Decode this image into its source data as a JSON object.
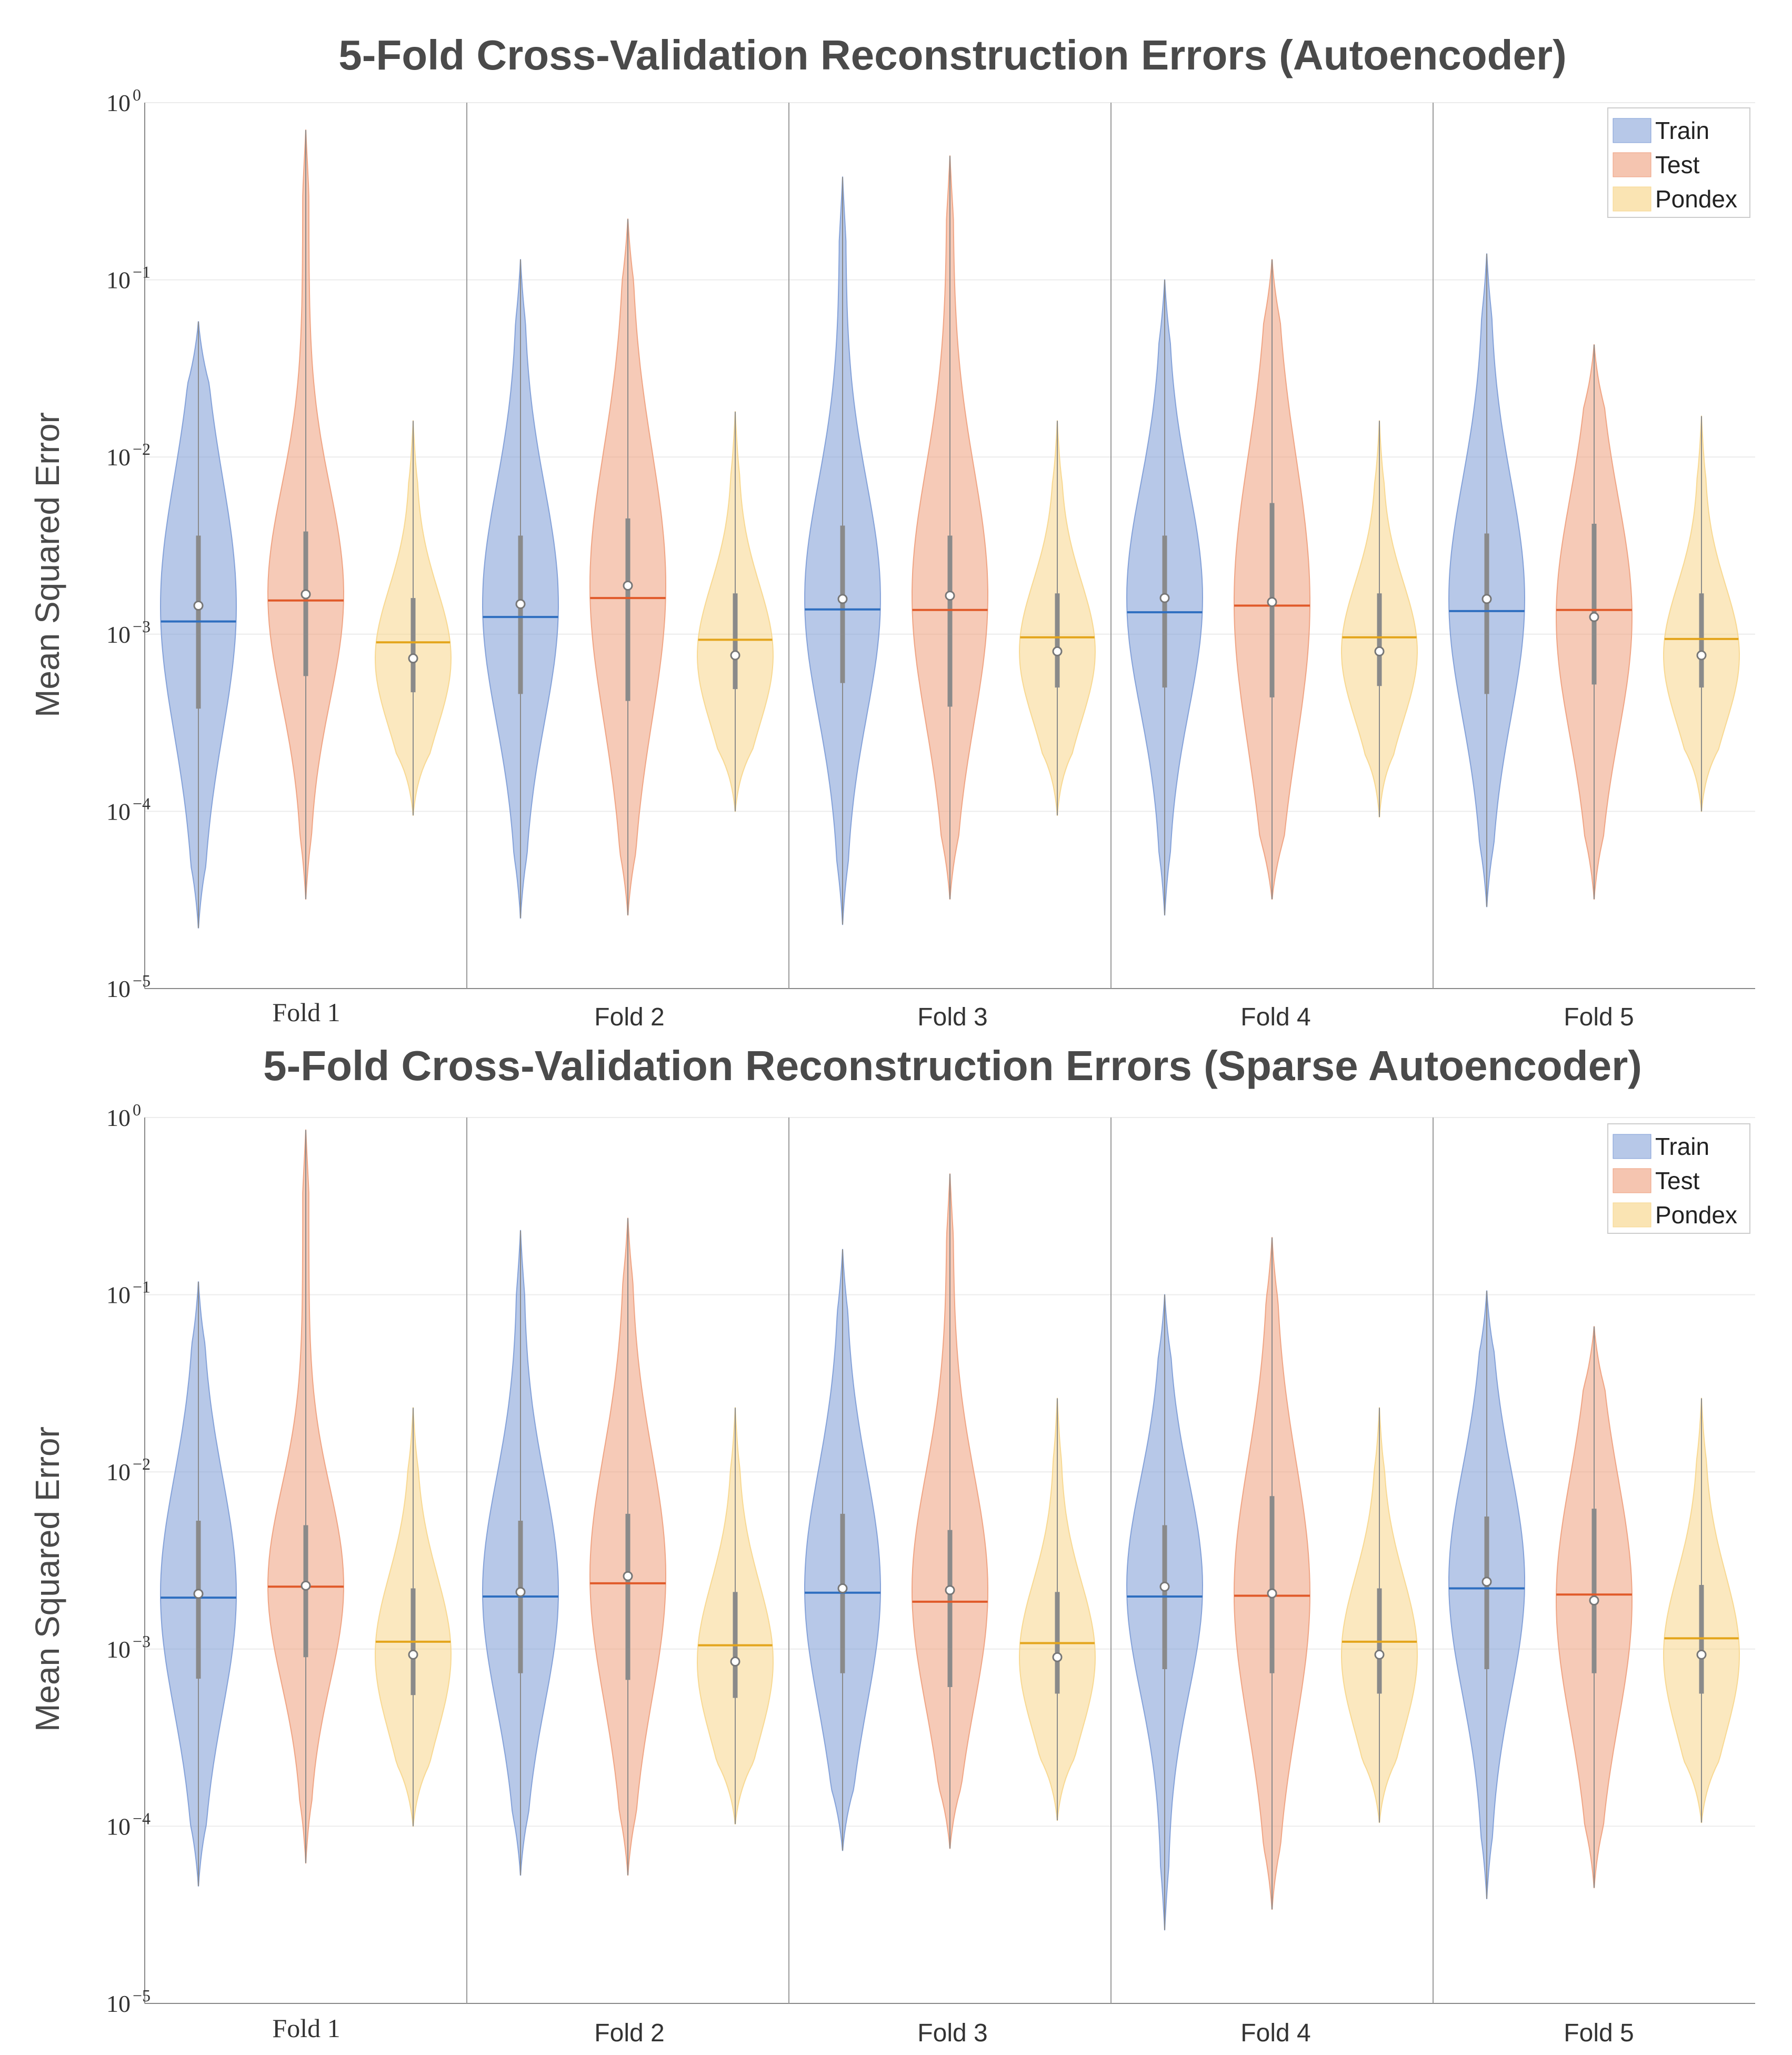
{
  "chart_data": [
    {
      "type": "violin",
      "title": "5-Fold Cross-Validation Reconstruction Errors (Autoencoder)",
      "xlabel": "",
      "ylabel": "Mean Squared Error",
      "yscale": "log",
      "ylim": [
        1e-05,
        1
      ],
      "yticks": [
        {
          "base": "10",
          "exp": "0",
          "value": 1
        },
        {
          "base": "10",
          "exp": "−1",
          "value": 0.1
        },
        {
          "base": "10",
          "exp": "−2",
          "value": 0.01
        },
        {
          "base": "10",
          "exp": "−3",
          "value": 0.001
        },
        {
          "base": "10",
          "exp": "−4",
          "value": 0.0001
        },
        {
          "base": "10",
          "exp": "−5",
          "value": 1e-05
        }
      ],
      "categories": [
        "Fold 1",
        "Fold 2",
        "Fold 3",
        "Fold 4",
        "Fold 5"
      ],
      "legend_position": "top-right",
      "grid": true,
      "series": [
        {
          "name": "Train",
          "color": "#7c9bd6",
          "line_color": "#2f6fc0",
          "mean": [
            0.00118,
            0.00125,
            0.00138,
            0.00133,
            0.00135
          ],
          "median": [
            0.00145,
            0.00148,
            0.00158,
            0.0016,
            0.00158
          ],
          "q1": [
            0.00038,
            0.00046,
            0.00053,
            0.0005,
            0.00046
          ],
          "q3": [
            0.0036,
            0.0036,
            0.0041,
            0.0036,
            0.0037
          ],
          "min": [
            2.2e-05,
            2.5e-05,
            2.3e-05,
            2.6e-05,
            2.9e-05
          ],
          "max": [
            0.058,
            0.13,
            0.38,
            0.1,
            0.14
          ]
        },
        {
          "name": "Test",
          "color": "#ee9e7c",
          "line_color": "#e05a2a",
          "mean": [
            0.00155,
            0.0016,
            0.00137,
            0.00145,
            0.00137
          ],
          "median": [
            0.00168,
            0.00188,
            0.00165,
            0.00152,
            0.00125
          ],
          "q1": [
            0.00058,
            0.00042,
            0.00039,
            0.00044,
            0.00052
          ],
          "q3": [
            0.0038,
            0.0045,
            0.0036,
            0.0055,
            0.0042
          ],
          "min": [
            3.2e-05,
            2.6e-05,
            3.2e-05,
            3.2e-05,
            3.2e-05
          ],
          "max": [
            0.7,
            0.22,
            0.5,
            0.13,
            0.043
          ]
        },
        {
          "name": "Pondex",
          "color": "#f7d68b",
          "line_color": "#e3a51c",
          "mean": [
            0.0009,
            0.00093,
            0.00096,
            0.00096,
            0.00094
          ],
          "median": [
            0.00073,
            0.00076,
            0.0008,
            0.0008,
            0.00076
          ],
          "q1": [
            0.00047,
            0.00049,
            0.0005,
            0.00051,
            0.0005
          ],
          "q3": [
            0.0016,
            0.0017,
            0.0017,
            0.0017,
            0.0017
          ],
          "min": [
            9.5e-05,
            0.0001,
            9.5e-05,
            9.3e-05,
            0.0001
          ],
          "max": [
            0.016,
            0.018,
            0.016,
            0.016,
            0.017
          ]
        }
      ]
    },
    {
      "type": "violin",
      "title": "5-Fold Cross-Validation Reconstruction Errors (Sparse Autoencoder)",
      "xlabel": "",
      "ylabel": "Mean Squared Error",
      "yscale": "log",
      "ylim": [
        1e-05,
        1
      ],
      "yticks": [
        {
          "base": "10",
          "exp": "0",
          "value": 1
        },
        {
          "base": "10",
          "exp": "−1",
          "value": 0.1
        },
        {
          "base": "10",
          "exp": "−2",
          "value": 0.01
        },
        {
          "base": "10",
          "exp": "−3",
          "value": 0.001
        },
        {
          "base": "10",
          "exp": "−4",
          "value": 0.0001
        },
        {
          "base": "10",
          "exp": "−5",
          "value": 1e-05
        }
      ],
      "categories": [
        "Fold 1",
        "Fold 2",
        "Fold 3",
        "Fold 4",
        "Fold 5"
      ],
      "legend_position": "top-right",
      "grid": true,
      "series": [
        {
          "name": "Train",
          "color": "#7c9bd6",
          "line_color": "#2f6fc0",
          "mean": [
            0.00195,
            0.00198,
            0.00208,
            0.00198,
            0.0022
          ],
          "median": [
            0.00205,
            0.0021,
            0.0022,
            0.00225,
            0.0024
          ],
          "q1": [
            0.00068,
            0.00073,
            0.00073,
            0.00077,
            0.00077
          ],
          "q3": [
            0.0053,
            0.0053,
            0.0058,
            0.005,
            0.0056
          ],
          "min": [
            4.6e-05,
            5.3e-05,
            7.3e-05,
            2.6e-05,
            3.9e-05
          ],
          "max": [
            0.118,
            0.23,
            0.18,
            0.1,
            0.105
          ]
        },
        {
          "name": "Test",
          "color": "#ee9e7c",
          "line_color": "#e05a2a",
          "mean": [
            0.00225,
            0.00235,
            0.00185,
            0.002,
            0.00203
          ],
          "median": [
            0.00228,
            0.00258,
            0.00215,
            0.00206,
            0.00188
          ],
          "q1": [
            0.0009,
            0.00067,
            0.00061,
            0.00073,
            0.00073
          ],
          "q3": [
            0.005,
            0.0058,
            0.0047,
            0.0073,
            0.0062
          ],
          "min": [
            6.2e-05,
            5.3e-05,
            7.5e-05,
            3.4e-05,
            4.5e-05
          ],
          "max": [
            0.85,
            0.27,
            0.48,
            0.21,
            0.066
          ]
        },
        {
          "name": "Pondex",
          "color": "#f7d68b",
          "line_color": "#e3a51c",
          "mean": [
            0.0011,
            0.00105,
            0.00108,
            0.0011,
            0.00115
          ],
          "median": [
            0.00093,
            0.00085,
            0.0009,
            0.00093,
            0.00093
          ],
          "q1": [
            0.00055,
            0.00053,
            0.00056,
            0.00056,
            0.00056
          ],
          "q3": [
            0.0022,
            0.0021,
            0.0021,
            0.0022,
            0.0023
          ],
          "min": [
            0.0001,
            0.000103,
            0.000108,
            0.000105,
            0.000105
          ],
          "max": [
            0.023,
            0.023,
            0.026,
            0.023,
            0.026
          ]
        }
      ]
    }
  ]
}
